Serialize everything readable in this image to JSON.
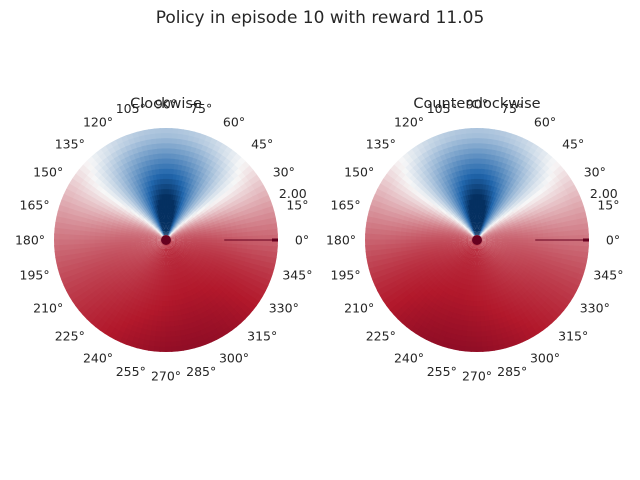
{
  "figure": {
    "title": "Policy in episode 10 with reward 11.05"
  },
  "chart_data": [
    {
      "type": "heatmap",
      "projection": "polar",
      "title": "Clockwise",
      "theta_ticks_deg": [
        0,
        15,
        30,
        45,
        60,
        75,
        90,
        105,
        120,
        135,
        150,
        165,
        180,
        195,
        210,
        225,
        240,
        255,
        270,
        285,
        300,
        315,
        330,
        345
      ],
      "theta_tick_labels": [
        "0°",
        "15°",
        "30°",
        "45°",
        "60°",
        "75°",
        "90°",
        "105°",
        "120°",
        "135°",
        "150°",
        "165°",
        "180°",
        "195°",
        "210°",
        "225°",
        "240°",
        "255°",
        "270°",
        "285°",
        "300°",
        "315°",
        "330°",
        "345°"
      ],
      "r_ticks": [
        2.0
      ],
      "r_tick_labels": [
        "2.00"
      ],
      "colormap": "RdBu",
      "low_color": "#b2182b",
      "mid_color": "#f7f7f7",
      "high_color": "#2166ac",
      "blue_lobe_center_deg": 90,
      "grid": false
    },
    {
      "type": "heatmap",
      "projection": "polar",
      "title": "Counterclockwise",
      "theta_ticks_deg": [
        0,
        15,
        30,
        45,
        60,
        75,
        90,
        105,
        120,
        135,
        150,
        165,
        180,
        195,
        210,
        225,
        240,
        255,
        270,
        285,
        300,
        315,
        330,
        345
      ],
      "theta_tick_labels": [
        "0°",
        "15°",
        "30°",
        "45°",
        "60°",
        "75°",
        "90°",
        "105°",
        "120°",
        "135°",
        "150°",
        "165°",
        "180°",
        "195°",
        "210°",
        "225°",
        "240°",
        "255°",
        "270°",
        "285°",
        "300°",
        "315°",
        "330°",
        "345°"
      ],
      "r_ticks": [
        2.0
      ],
      "r_tick_labels": [
        "2.00"
      ],
      "colormap": "RdBu",
      "low_color": "#b2182b",
      "mid_color": "#f7f7f7",
      "high_color": "#2166ac",
      "blue_lobe_center_deg": 90,
      "grid": false
    }
  ]
}
